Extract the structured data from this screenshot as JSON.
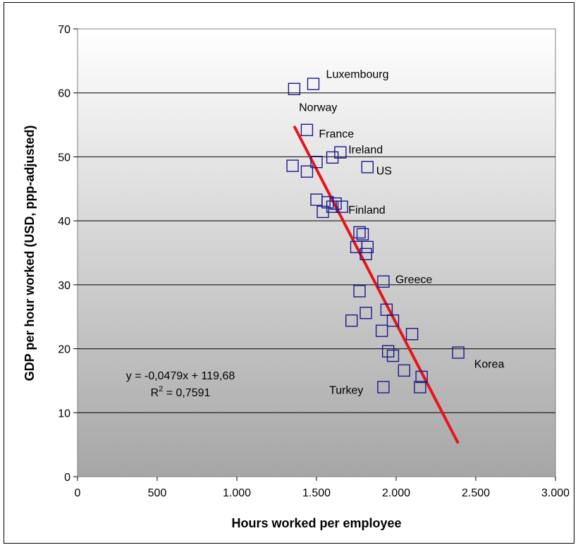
{
  "chart_data": {
    "type": "scatter",
    "title": "",
    "xlabel": "Hours worked per employee",
    "ylabel": "GDP per hour worked (USD, ppp-adjusted)",
    "xlim": [
      0,
      3000
    ],
    "ylim": [
      0,
      70
    ],
    "x_ticks": [
      0,
      500,
      1000,
      1500,
      2000,
      2500,
      3000
    ],
    "x_tick_labels": [
      "0",
      "500",
      "1.000",
      "1.500",
      "2.000",
      "2.500",
      "3.000"
    ],
    "y_ticks": [
      0,
      10,
      20,
      30,
      40,
      50,
      60,
      70
    ],
    "y_tick_labels": [
      "0",
      "10",
      "20",
      "30",
      "40",
      "50",
      "60",
      "70"
    ],
    "grid": "horizontal",
    "background": "vertical gradient white to grey",
    "marker": "open-square",
    "marker_color": "#1a1a8c",
    "trend_color": "#e8141b",
    "points": [
      {
        "x": 1360,
        "y": 60.6
      },
      {
        "x": 1480,
        "y": 61.4
      },
      {
        "x": 1440,
        "y": 54.2
      },
      {
        "x": 1650,
        "y": 50.7
      },
      {
        "x": 1600,
        "y": 49.9
      },
      {
        "x": 1500,
        "y": 49.2
      },
      {
        "x": 1350,
        "y": 48.6
      },
      {
        "x": 1440,
        "y": 47.7
      },
      {
        "x": 1820,
        "y": 48.4
      },
      {
        "x": 1500,
        "y": 43.3
      },
      {
        "x": 1570,
        "y": 42.9
      },
      {
        "x": 1620,
        "y": 42.7
      },
      {
        "x": 1600,
        "y": 42.2
      },
      {
        "x": 1660,
        "y": 42.2
      },
      {
        "x": 1540,
        "y": 41.4
      },
      {
        "x": 1770,
        "y": 38.2
      },
      {
        "x": 1790,
        "y": 37.9
      },
      {
        "x": 1750,
        "y": 35.9
      },
      {
        "x": 1820,
        "y": 35.9
      },
      {
        "x": 1810,
        "y": 34.8
      },
      {
        "x": 1920,
        "y": 30.5
      },
      {
        "x": 1770,
        "y": 29.0
      },
      {
        "x": 1940,
        "y": 26.1
      },
      {
        "x": 1810,
        "y": 25.6
      },
      {
        "x": 1720,
        "y": 24.4
      },
      {
        "x": 1980,
        "y": 24.4
      },
      {
        "x": 1910,
        "y": 22.8
      },
      {
        "x": 2100,
        "y": 22.3
      },
      {
        "x": 1950,
        "y": 19.6
      },
      {
        "x": 1980,
        "y": 18.9
      },
      {
        "x": 2390,
        "y": 19.4
      },
      {
        "x": 2050,
        "y": 16.6
      },
      {
        "x": 2160,
        "y": 15.6
      },
      {
        "x": 2150,
        "y": 14.0
      },
      {
        "x": 1920,
        "y": 14.0
      }
    ],
    "labels": [
      {
        "text": "Luxembourg",
        "x": 1560,
        "y": 63.0
      },
      {
        "text": "Norway",
        "x": 1390,
        "y": 57.8
      },
      {
        "text": "France",
        "x": 1515,
        "y": 53.7
      },
      {
        "text": "Ireland",
        "x": 1700,
        "y": 51.2
      },
      {
        "text": "US",
        "x": 1875,
        "y": 47.9
      },
      {
        "text": "Finland",
        "x": 1700,
        "y": 41.8
      },
      {
        "text": "Greece",
        "x": 1995,
        "y": 30.9
      },
      {
        "text": "Korea",
        "x": 2490,
        "y": 17.7
      },
      {
        "text": "Turkey",
        "x": 1580,
        "y": 13.6
      }
    ],
    "trendline": {
      "x1": 1360,
      "y1": 54.8,
      "x2": 2390,
      "y2": 5.2
    },
    "equation": "y = -0,0479x + 119,68",
    "r2_prefix": "R",
    "r2_sup": "2",
    "r2_value": " = 0,7591"
  }
}
